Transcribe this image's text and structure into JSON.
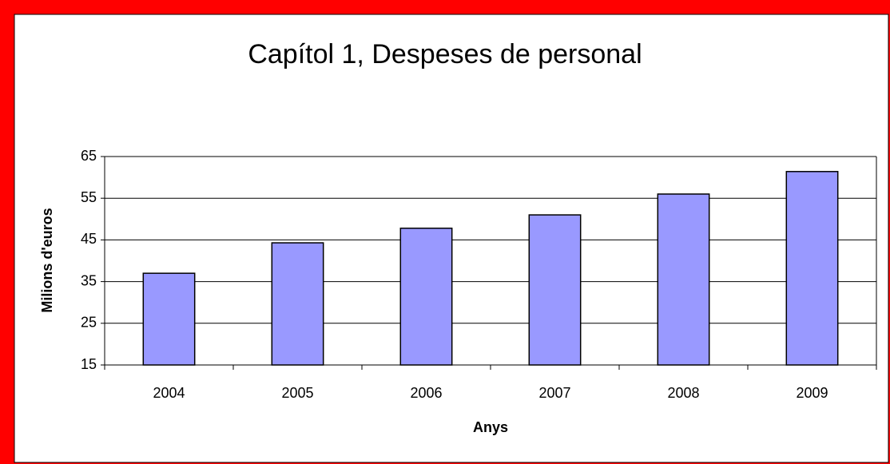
{
  "chart_data": {
    "type": "bar",
    "title": "Capítol 1, Despeses de personal",
    "x_label": "Anys",
    "y_label": "Milions d'euros",
    "categories": [
      "2004",
      "2005",
      "2006",
      "2007",
      "2008",
      "2009"
    ],
    "values": [
      37,
      44.3,
      47.8,
      51,
      56,
      61.4
    ],
    "color": "#9999ff",
    "ylim": [
      15,
      65
    ],
    "yticks": [
      15,
      25,
      35,
      45,
      55,
      65
    ],
    "grid": true
  }
}
